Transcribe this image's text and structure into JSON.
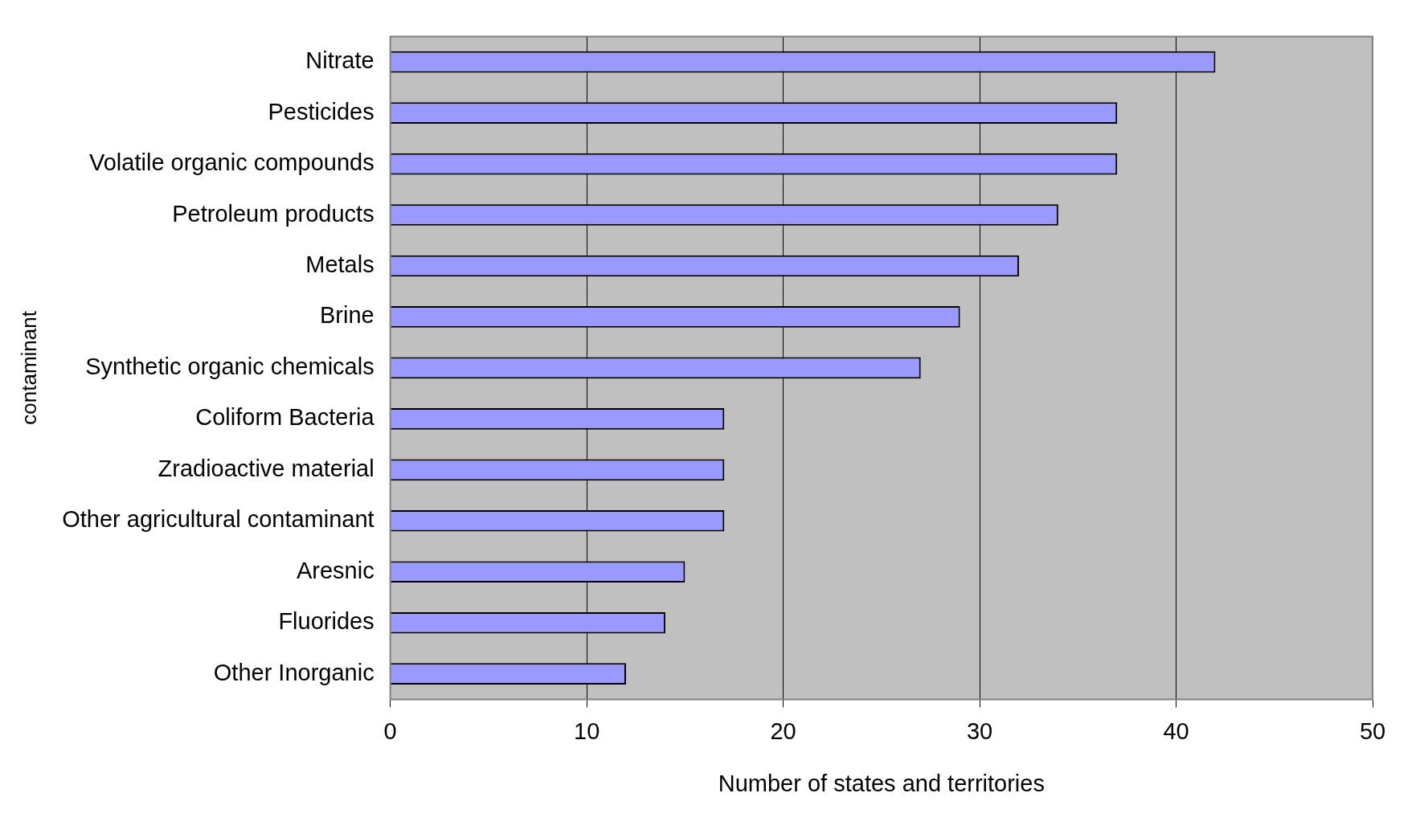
{
  "chart_data": {
    "type": "bar",
    "orientation": "horizontal",
    "xlabel": "Number of states and territories",
    "ylabel": "contaminant",
    "categories": [
      "Nitrate",
      "Pesticides",
      "Volatile organic compounds",
      "Petroleum products",
      "Metals",
      "Brine",
      "Synthetic organic chemicals",
      "Coliform Bacteria",
      "Zradioactive material",
      "Other agricultural contaminant",
      "Aresnic",
      "Fluorides",
      "Other Inorganic"
    ],
    "values": [
      42,
      37,
      37,
      34,
      32,
      29,
      27,
      17,
      17,
      17,
      15,
      14,
      12
    ],
    "color": "#9999ff",
    "xlim": [
      0,
      50
    ],
    "xticks": [
      0,
      10,
      20,
      30,
      40,
      50
    ],
    "grid": "x",
    "legend": false
  }
}
